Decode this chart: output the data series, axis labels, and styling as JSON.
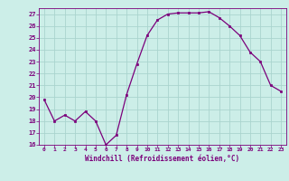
{
  "x": [
    0,
    1,
    2,
    3,
    4,
    5,
    6,
    7,
    8,
    9,
    10,
    11,
    12,
    13,
    14,
    15,
    16,
    17,
    18,
    19,
    20,
    21,
    22,
    23
  ],
  "y": [
    19.8,
    18.0,
    18.5,
    18.0,
    18.8,
    18.0,
    16.0,
    16.8,
    20.2,
    22.8,
    25.2,
    26.5,
    27.0,
    27.1,
    27.1,
    27.1,
    27.2,
    26.7,
    26.0,
    25.2,
    23.8,
    23.0,
    21.0,
    20.5
  ],
  "line_color": "#7b007b",
  "marker": "s",
  "marker_size": 2.0,
  "bg_color": "#cceee8",
  "grid_color": "#aad4ce",
  "xlabel": "Windchill (Refroidissement éolien,°C)",
  "xlabel_color": "#7b007b",
  "tick_color": "#7b007b",
  "ylim": [
    16,
    27.5
  ],
  "yticks": [
    16,
    17,
    18,
    19,
    20,
    21,
    22,
    23,
    24,
    25,
    26,
    27
  ],
  "xlim": [
    -0.5,
    23.5
  ],
  "xticks": [
    0,
    1,
    2,
    3,
    4,
    5,
    6,
    7,
    8,
    9,
    10,
    11,
    12,
    13,
    14,
    15,
    16,
    17,
    18,
    19,
    20,
    21,
    22,
    23
  ]
}
